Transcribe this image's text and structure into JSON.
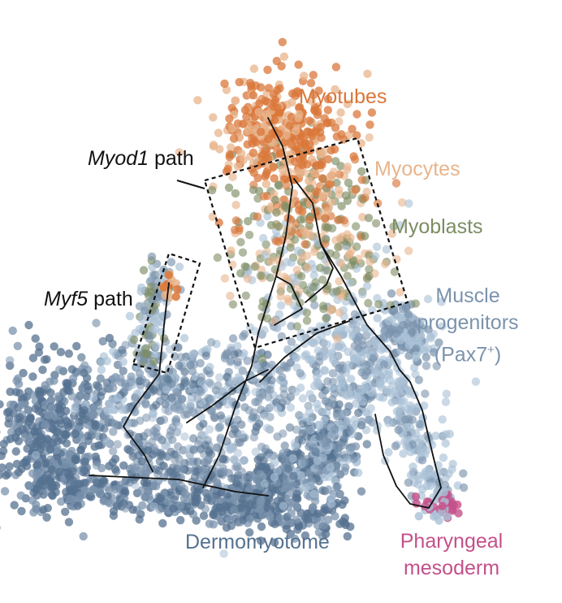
{
  "labels": {
    "myotubes": "Myotubes",
    "myocytes": "Myocytes",
    "myoblasts": "Myoblasts",
    "muscle_line1": "Muscle",
    "muscle_line2": "progenitors",
    "muscle_line3_base": "(Pax7",
    "muscle_line3_sup": "+",
    "muscle_line3_end": ")",
    "dermomyotome": "Dermomyotome",
    "pharyngeal_line1": "Pharyngeal",
    "pharyngeal_line2": "mesoderm",
    "myod1_gene": "Myod1",
    "myod1_suffix": " path",
    "myf5_gene": "Myf5",
    "myf5_suffix": " path"
  },
  "colors": {
    "myotubes": "#d9773a",
    "myocytes": "#e8b48c",
    "myoblasts": "#7d8c63",
    "muscle_progenitors": "#7b93ad",
    "dermomyotome": "#557290",
    "pharyngeal_mesoderm": "#c4508a",
    "light_progenitor": "#a9c0d6",
    "trajectory": "#111111"
  }
}
